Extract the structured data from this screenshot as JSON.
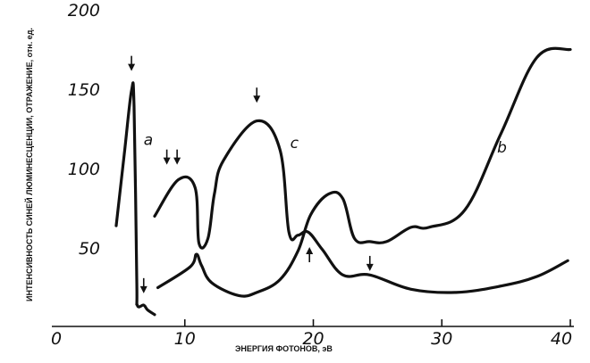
{
  "chart_data": {
    "type": "line",
    "title": "",
    "xlabel": "ЭНЕРГИЯ ФОТОНОВ, эВ",
    "ylabel": "ИНТЕНСИВНОСТЬ СИНЕЙ ЛЮМИНЕСЦЕНЦИИ, ОТРАЖЕНИЕ, отн. ед.",
    "xlim": [
      0,
      40
    ],
    "ylim": [
      0,
      200
    ],
    "xticks": [
      "0",
      "10",
      "20",
      "30",
      "40"
    ],
    "yticks": [
      "50",
      "100",
      "150",
      "200"
    ],
    "grid": false,
    "series": [
      {
        "name": "a",
        "x": [
          4.66,
          5.3,
          5.85,
          6.05,
          6.26,
          6.3,
          6.8,
          7.1,
          7.65
        ],
        "y": [
          64,
          110,
          149,
          139,
          30,
          14,
          14,
          11,
          8
        ]
      },
      {
        "name": "c",
        "x": [
          7.65,
          9.5,
          10.8,
          11.1,
          11.8,
          12.3,
          13.0,
          15.6,
          17.4,
          18.1,
          18.8,
          19.6,
          20.7,
          22.3,
          24.4,
          27.6,
          31.1,
          34.6,
          37.4,
          39.8
        ],
        "y": [
          70,
          93,
          88,
          53,
          56,
          84,
          105,
          130,
          112,
          60,
          58,
          60,
          49,
          33,
          33,
          24,
          22,
          26,
          32,
          42
        ]
      },
      {
        "name": "b",
        "x": [
          7.9,
          10.4,
          10.9,
          11.3,
          12.1,
          14.2,
          15.6,
          17.4,
          18.8,
          19.8,
          21.2,
          22.3,
          23.2,
          24.4,
          25.7,
          27.6,
          29.0,
          31.8,
          34.6,
          37.4,
          40
        ],
        "y": [
          25,
          38,
          46,
          39,
          28,
          20,
          22,
          30,
          48,
          71,
          84,
          81,
          56,
          54,
          54,
          63,
          63,
          74,
          122,
          170,
          175
        ]
      }
    ],
    "annotations": [
      {
        "text": "a",
        "x": 6.8,
        "y": 115
      },
      {
        "text": "c",
        "x": 18.2,
        "y": 113
      },
      {
        "text": "b",
        "x": 34.3,
        "y": 110
      }
    ],
    "arrows": [
      {
        "x": 5.85,
        "y": 162,
        "dir": "down"
      },
      {
        "x": 8.6,
        "y": 103,
        "dir": "down"
      },
      {
        "x": 9.4,
        "y": 103,
        "dir": "down"
      },
      {
        "x": 15.6,
        "y": 142,
        "dir": "down"
      },
      {
        "x": 19.7,
        "y": 50,
        "dir": "up"
      },
      {
        "x": 24.4,
        "y": 36,
        "dir": "down"
      },
      {
        "x": 6.8,
        "y": 22,
        "dir": "down"
      }
    ]
  }
}
